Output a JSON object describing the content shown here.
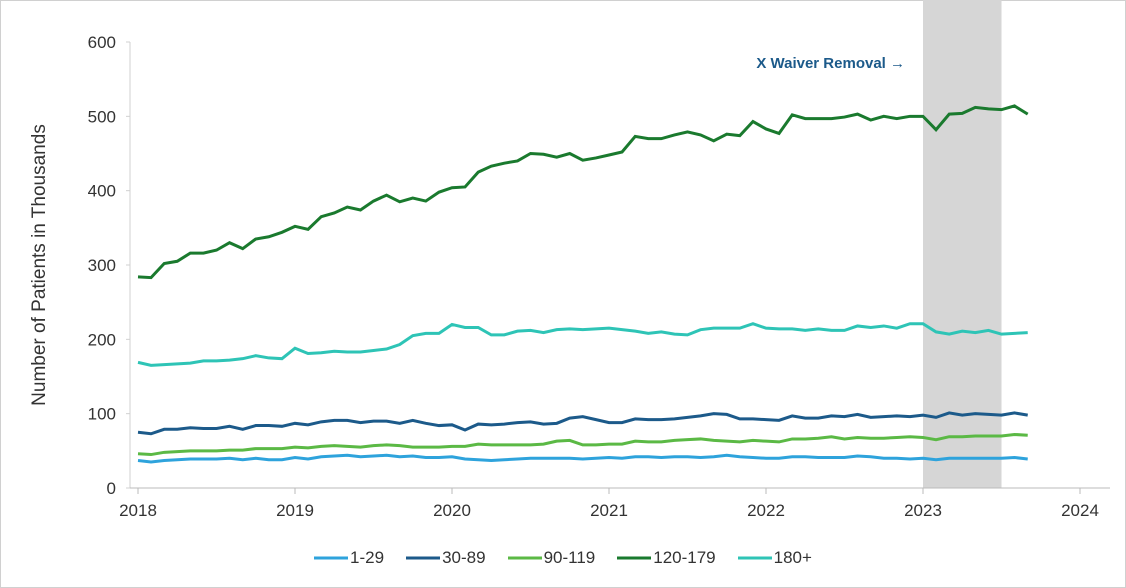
{
  "chart_data": {
    "type": "line",
    "y_label": "Number of Patients in Thousands",
    "annotation": "X Waiver Removal →",
    "shaded_region": [
      2023,
      2023.5
    ],
    "xlim": [
      2018,
      2024
    ],
    "xticks": [
      2018,
      2019,
      2020,
      2021,
      2022,
      2023,
      2024
    ],
    "ylim": [
      0,
      600
    ],
    "yticks": [
      0,
      100,
      200,
      300,
      400,
      500,
      600
    ],
    "legend": "bottom",
    "x": [
      2018,
      2018.083,
      2018.167,
      2018.25,
      2018.333,
      2018.417,
      2018.5,
      2018.583,
      2018.667,
      2018.75,
      2018.833,
      2018.917,
      2019,
      2019.083,
      2019.167,
      2019.25,
      2019.333,
      2019.417,
      2019.5,
      2019.583,
      2019.667,
      2019.75,
      2019.833,
      2019.917,
      2020,
      2020.083,
      2020.167,
      2020.25,
      2020.333,
      2020.417,
      2020.5,
      2020.583,
      2020.667,
      2020.75,
      2020.833,
      2020.917,
      2021,
      2021.083,
      2021.167,
      2021.25,
      2021.333,
      2021.417,
      2021.5,
      2021.583,
      2021.667,
      2021.75,
      2021.833,
      2021.917,
      2022,
      2022.083,
      2022.167,
      2022.25,
      2022.333,
      2022.417,
      2022.5,
      2022.583,
      2022.667,
      2022.75,
      2022.833,
      2022.917,
      2023,
      2023.083,
      2023.167,
      2023.25,
      2023.333,
      2023.417,
      2023.5,
      2023.583,
      2023.667
    ],
    "series": [
      {
        "name": "1-29",
        "color": "#2ea3dc",
        "values": [
          37,
          35,
          37,
          38,
          39,
          39,
          39,
          40,
          38,
          40,
          38,
          38,
          41,
          39,
          42,
          43,
          44,
          42,
          43,
          44,
          42,
          43,
          41,
          41,
          42,
          39,
          38,
          37,
          38,
          39,
          40,
          40,
          40,
          40,
          39,
          40,
          41,
          40,
          42,
          42,
          41,
          42,
          42,
          41,
          42,
          44,
          42,
          41,
          40,
          40,
          42,
          42,
          41,
          41,
          41,
          43,
          42,
          40,
          40,
          39,
          40,
          38,
          40,
          40,
          40,
          40,
          40,
          41,
          39
        ]
      },
      {
        "name": "30-89",
        "color": "#1c5a8a",
        "values": [
          75,
          73,
          79,
          79,
          81,
          80,
          80,
          83,
          79,
          84,
          84,
          83,
          87,
          85,
          89,
          91,
          91,
          88,
          90,
          90,
          87,
          91,
          87,
          84,
          85,
          78,
          86,
          85,
          86,
          88,
          89,
          86,
          87,
          94,
          96,
          92,
          88,
          88,
          93,
          92,
          92,
          93,
          95,
          97,
          100,
          99,
          93,
          93,
          92,
          91,
          97,
          94,
          94,
          97,
          96,
          99,
          95,
          96,
          97,
          96,
          98,
          95,
          101,
          98,
          100,
          99,
          98,
          101,
          98
        ]
      },
      {
        "name": "90-119",
        "color": "#5bb945",
        "values": [
          46,
          45,
          48,
          49,
          50,
          50,
          50,
          51,
          51,
          53,
          53,
          53,
          55,
          54,
          56,
          57,
          56,
          55,
          57,
          58,
          57,
          55,
          55,
          55,
          56,
          56,
          59,
          58,
          58,
          58,
          58,
          59,
          63,
          64,
          58,
          58,
          59,
          59,
          63,
          62,
          62,
          64,
          65,
          66,
          64,
          63,
          62,
          64,
          63,
          62,
          66,
          66,
          67,
          69,
          66,
          68,
          67,
          67,
          68,
          69,
          68,
          65,
          69,
          69,
          70,
          70,
          70,
          72,
          71
        ]
      },
      {
        "name": "120-179",
        "color": "#1a7a2e",
        "values": [
          284,
          283,
          302,
          305,
          316,
          316,
          320,
          330,
          322,
          335,
          338,
          344,
          352,
          348,
          365,
          370,
          378,
          374,
          386,
          394,
          385,
          390,
          386,
          398,
          404,
          405,
          425,
          433,
          437,
          440,
          450,
          449,
          445,
          450,
          441,
          444,
          448,
          452,
          473,
          470,
          470,
          475,
          479,
          475,
          467,
          476,
          474,
          493,
          483,
          477,
          502,
          497,
          497,
          497,
          499,
          503,
          495,
          500,
          497,
          500,
          500,
          482,
          503,
          504,
          512,
          510,
          509,
          514,
          503
        ]
      },
      {
        "name": "180+",
        "color": "#2ec4b6",
        "values": [
          169,
          165,
          166,
          167,
          168,
          171,
          171,
          172,
          174,
          178,
          175,
          174,
          188,
          181,
          182,
          184,
          183,
          183,
          185,
          187,
          193,
          205,
          208,
          208,
          220,
          216,
          216,
          206,
          206,
          211,
          212,
          209,
          213,
          214,
          213,
          214,
          215,
          213,
          211,
          208,
          210,
          207,
          206,
          213,
          215,
          215,
          215,
          221,
          215,
          214,
          214,
          212,
          214,
          212,
          212,
          218,
          216,
          218,
          215,
          221,
          221,
          210,
          207,
          211,
          209,
          212,
          207,
          208,
          209
        ]
      }
    ]
  }
}
